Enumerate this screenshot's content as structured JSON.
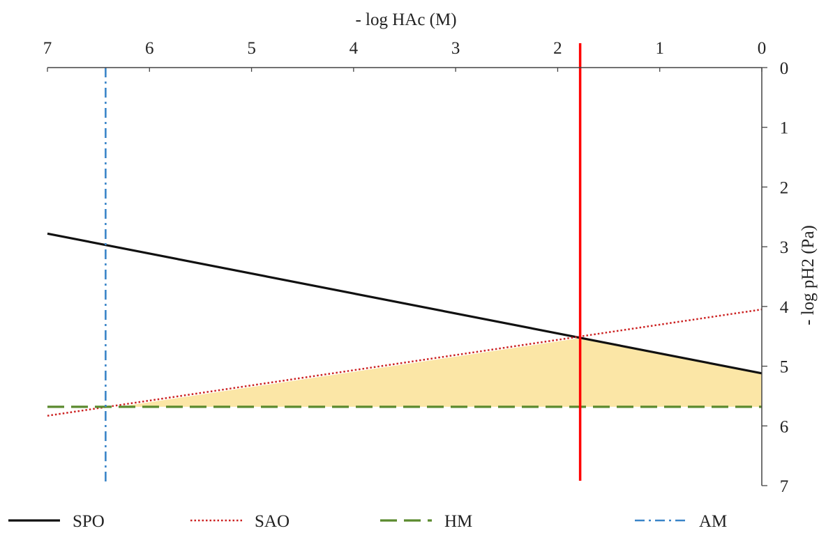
{
  "chart_data": {
    "type": "line",
    "x_axis": {
      "label": "- log HAc (M)",
      "position": "top",
      "reversed": true,
      "range": [
        7,
        0
      ],
      "ticks": [
        7,
        6,
        5,
        4,
        3,
        2,
        1,
        0
      ]
    },
    "y_axis": {
      "label": "- log pH2 (Pa)",
      "position": "right",
      "inverted": true,
      "range": [
        0,
        7
      ],
      "ticks": [
        0,
        1,
        2,
        3,
        4,
        5,
        6,
        7
      ]
    },
    "grid": false,
    "legend_position": "bottom",
    "series": [
      {
        "name": "SPO",
        "color": "#111111",
        "style": "solid",
        "x": [
          7,
          0
        ],
        "y": [
          2.78,
          5.12
        ]
      },
      {
        "name": "SAO",
        "color": "#cc2222",
        "style": "dotted",
        "x": [
          7,
          0
        ],
        "y": [
          5.83,
          4.05
        ]
      },
      {
        "name": "HM",
        "color": "#5a8a2e",
        "style": "dashed",
        "x": [
          7,
          0
        ],
        "y": [
          5.68,
          5.68
        ]
      },
      {
        "name": "AM",
        "color": "#3a85c8",
        "style": "dashdot",
        "x": [
          6.43,
          6.43
        ],
        "y": [
          0,
          7
        ]
      }
    ],
    "marker_line": {
      "color": "#ff0000",
      "x": 1.78
    },
    "shaded_region": {
      "fill": "#fbe6a6",
      "x": [
        6.3,
        1.78,
        0,
        0
      ],
      "y": [
        5.68,
        4.53,
        5.12,
        5.68
      ]
    }
  }
}
